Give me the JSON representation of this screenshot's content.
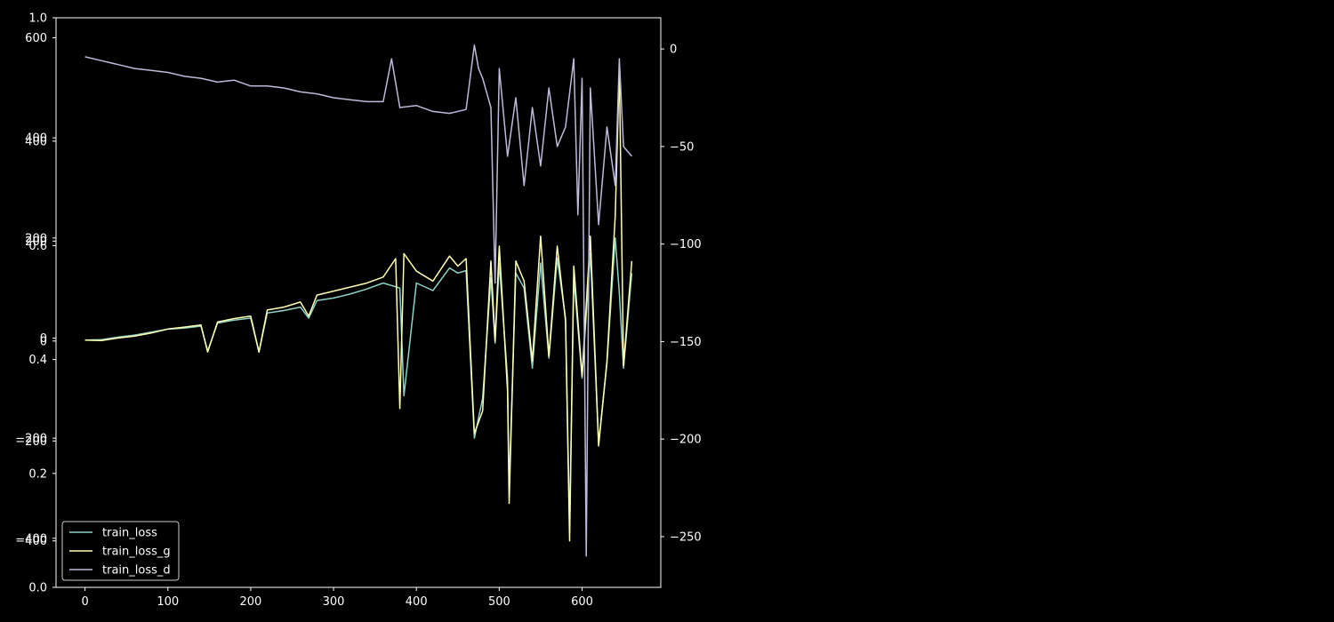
{
  "chart_data": {
    "type": "line",
    "title": "",
    "xlabel": "",
    "ylabel": "",
    "background": "#000000",
    "foreground": "#ffffff",
    "grid": false,
    "legend_location": "lower-left",
    "x_axis": {
      "range": [
        -35,
        695
      ],
      "ticks": [
        0,
        100,
        200,
        300,
        400,
        500,
        600
      ],
      "tick_labels": [
        "0",
        "100",
        "200",
        "300",
        "400",
        "500",
        "600"
      ]
    },
    "y_axes": {
      "left_frac": {
        "range": [
          0.0,
          1.0
        ],
        "ticks": [
          0.0,
          0.2,
          0.4,
          0.6,
          1.0
        ],
        "tick_labels": [
          "0.0",
          "0.2",
          "0.4",
          "0.6",
          "1.0"
        ]
      },
      "left_a": {
        "range": [
          -498,
          640
        ],
        "ticks": [
          -400,
          -200,
          0,
          200,
          400,
          600
        ],
        "tick_labels": [
          "−400",
          "−200",
          "0",
          "200",
          "400",
          "600"
        ]
      },
      "left_b": {
        "range": [
          -493,
          647
        ],
        "ticks": [
          -400,
          -200,
          0,
          200,
          400
        ],
        "tick_labels": [
          "−400",
          "−200",
          "0",
          "200",
          "400"
        ]
      },
      "right": {
        "range": [
          -276,
          16
        ],
        "ticks": [
          0,
          -50,
          -100,
          -150,
          -200,
          -250
        ],
        "tick_labels": [
          "0",
          "−50",
          "−100",
          "−150",
          "−200",
          "−250"
        ]
      }
    },
    "series": [
      {
        "name": "train_loss",
        "color": "#8dd3c7",
        "axis": "left_a",
        "points": [
          [
            0,
            -4
          ],
          [
            20,
            -3
          ],
          [
            40,
            2
          ],
          [
            60,
            6
          ],
          [
            80,
            12
          ],
          [
            100,
            18
          ],
          [
            120,
            20
          ],
          [
            140,
            24
          ],
          [
            148,
            -26
          ],
          [
            160,
            30
          ],
          [
            180,
            36
          ],
          [
            200,
            40
          ],
          [
            210,
            -28
          ],
          [
            220,
            50
          ],
          [
            240,
            55
          ],
          [
            260,
            62
          ],
          [
            270,
            40
          ],
          [
            280,
            75
          ],
          [
            300,
            80
          ],
          [
            320,
            88
          ],
          [
            340,
            98
          ],
          [
            360,
            110
          ],
          [
            380,
            100
          ],
          [
            385,
            -115
          ],
          [
            400,
            110
          ],
          [
            420,
            95
          ],
          [
            440,
            140
          ],
          [
            450,
            130
          ],
          [
            460,
            135
          ],
          [
            470,
            -200
          ],
          [
            480,
            -120
          ],
          [
            490,
            120
          ],
          [
            495,
            -10
          ],
          [
            500,
            150
          ],
          [
            510,
            -80
          ],
          [
            512,
            -300
          ],
          [
            520,
            130
          ],
          [
            530,
            100
          ],
          [
            540,
            -60
          ],
          [
            550,
            150
          ],
          [
            560,
            -40
          ],
          [
            570,
            160
          ],
          [
            580,
            40
          ],
          [
            585,
            -380
          ],
          [
            590,
            120
          ],
          [
            600,
            -80
          ],
          [
            610,
            170
          ],
          [
            620,
            -210
          ],
          [
            630,
            -50
          ],
          [
            640,
            200
          ],
          [
            645,
            90
          ],
          [
            650,
            -60
          ],
          [
            660,
            130
          ]
        ]
      },
      {
        "name": "train_loss_g",
        "color": "#ffffb3",
        "axis": "left_b",
        "points": [
          [
            0,
            2
          ],
          [
            20,
            1
          ],
          [
            40,
            6
          ],
          [
            60,
            10
          ],
          [
            80,
            16
          ],
          [
            100,
            24
          ],
          [
            120,
            28
          ],
          [
            140,
            32
          ],
          [
            148,
            -22
          ],
          [
            160,
            38
          ],
          [
            180,
            45
          ],
          [
            200,
            50
          ],
          [
            210,
            -22
          ],
          [
            220,
            62
          ],
          [
            240,
            68
          ],
          [
            260,
            78
          ],
          [
            270,
            50
          ],
          [
            280,
            92
          ],
          [
            300,
            100
          ],
          [
            320,
            108
          ],
          [
            340,
            116
          ],
          [
            360,
            128
          ],
          [
            375,
            165
          ],
          [
            380,
            -135
          ],
          [
            385,
            175
          ],
          [
            400,
            140
          ],
          [
            420,
            120
          ],
          [
            440,
            170
          ],
          [
            450,
            150
          ],
          [
            460,
            165
          ],
          [
            470,
            -185
          ],
          [
            480,
            -140
          ],
          [
            490,
            160
          ],
          [
            495,
            0
          ],
          [
            500,
            190
          ],
          [
            510,
            -100
          ],
          [
            512,
            -325
          ],
          [
            520,
            160
          ],
          [
            530,
            120
          ],
          [
            540,
            -40
          ],
          [
            550,
            210
          ],
          [
            560,
            -30
          ],
          [
            570,
            190
          ],
          [
            580,
            40
          ],
          [
            585,
            -400
          ],
          [
            590,
            150
          ],
          [
            600,
            -70
          ],
          [
            610,
            210
          ],
          [
            620,
            -210
          ],
          [
            630,
            -40
          ],
          [
            640,
            250
          ],
          [
            645,
            545
          ],
          [
            650,
            -50
          ],
          [
            660,
            160
          ]
        ]
      },
      {
        "name": "train_loss_d",
        "color": "#bebada",
        "axis": "right",
        "points": [
          [
            0,
            -4
          ],
          [
            20,
            -6
          ],
          [
            40,
            -8
          ],
          [
            60,
            -10
          ],
          [
            80,
            -11
          ],
          [
            100,
            -12
          ],
          [
            120,
            -14
          ],
          [
            140,
            -15
          ],
          [
            160,
            -17
          ],
          [
            180,
            -16
          ],
          [
            200,
            -19
          ],
          [
            220,
            -19
          ],
          [
            240,
            -20
          ],
          [
            260,
            -22
          ],
          [
            280,
            -23
          ],
          [
            300,
            -25
          ],
          [
            320,
            -26
          ],
          [
            340,
            -27
          ],
          [
            360,
            -27
          ],
          [
            370,
            -5
          ],
          [
            380,
            -30
          ],
          [
            400,
            -29
          ],
          [
            420,
            -32
          ],
          [
            440,
            -33
          ],
          [
            460,
            -31
          ],
          [
            470,
            2
          ],
          [
            475,
            -10
          ],
          [
            480,
            -15
          ],
          [
            490,
            -30
          ],
          [
            495,
            -120
          ],
          [
            500,
            -10
          ],
          [
            510,
            -55
          ],
          [
            520,
            -25
          ],
          [
            530,
            -70
          ],
          [
            540,
            -30
          ],
          [
            550,
            -60
          ],
          [
            560,
            -20
          ],
          [
            570,
            -50
          ],
          [
            580,
            -40
          ],
          [
            590,
            -5
          ],
          [
            595,
            -85
          ],
          [
            600,
            -15
          ],
          [
            605,
            -260
          ],
          [
            610,
            -20
          ],
          [
            620,
            -90
          ],
          [
            630,
            -40
          ],
          [
            640,
            -70
          ],
          [
            645,
            -5
          ],
          [
            650,
            -50
          ],
          [
            660,
            -55
          ]
        ]
      }
    ]
  }
}
